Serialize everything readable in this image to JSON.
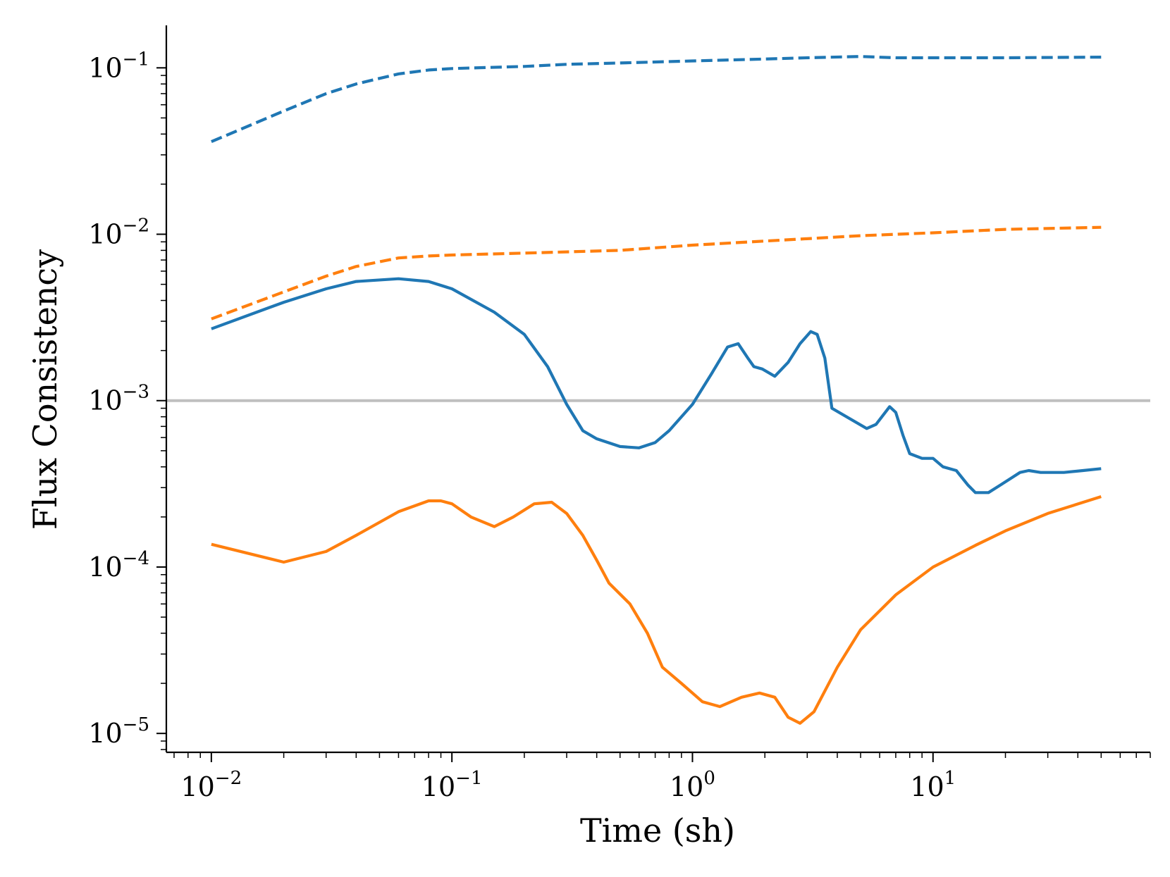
{
  "chart_data": {
    "type": "line",
    "title": "",
    "xlabel": "Time (sh)",
    "ylabel": "Flux Consistency",
    "xscale": "log",
    "yscale": "log",
    "xlim": [
      0.0065,
      80
    ],
    "ylim": [
      7.7e-06,
      0.18
    ],
    "x_ticks": [
      {
        "value": 0.01,
        "base": "10",
        "exp": "−2"
      },
      {
        "value": 0.1,
        "base": "10",
        "exp": "−1"
      },
      {
        "value": 1,
        "base": "10",
        "exp": "0"
      },
      {
        "value": 10,
        "base": "10",
        "exp": "1"
      }
    ],
    "y_ticks": [
      {
        "value": 1e-05,
        "base": "10",
        "exp": "−5"
      },
      {
        "value": 0.0001,
        "base": "10",
        "exp": "−4"
      },
      {
        "value": 0.001,
        "base": "10",
        "exp": "−3"
      },
      {
        "value": 0.01,
        "base": "10",
        "exp": "−2"
      },
      {
        "value": 0.1,
        "base": "10",
        "exp": "−1"
      }
    ],
    "grid": false,
    "reference_line": {
      "y": 0.001,
      "color": "#bfbfbf"
    },
    "series": [
      {
        "color": "#1f77b4",
        "dash": "dashed",
        "points": [
          [
            0.01,
            0.036
          ],
          [
            0.02,
            0.055
          ],
          [
            0.03,
            0.07
          ],
          [
            0.04,
            0.08
          ],
          [
            0.06,
            0.092
          ],
          [
            0.08,
            0.097
          ],
          [
            0.1,
            0.099
          ],
          [
            0.2,
            0.102
          ],
          [
            0.3,
            0.105
          ],
          [
            0.5,
            0.107
          ],
          [
            1,
            0.11
          ],
          [
            2,
            0.113
          ],
          [
            3,
            0.115
          ],
          [
            5,
            0.117
          ],
          [
            7,
            0.115
          ],
          [
            10,
            0.115
          ],
          [
            20,
            0.115
          ],
          [
            50,
            0.116
          ]
        ]
      },
      {
        "color": "#ff7f0e",
        "dash": "dashed",
        "points": [
          [
            0.01,
            0.0031
          ],
          [
            0.02,
            0.0045
          ],
          [
            0.03,
            0.0056
          ],
          [
            0.04,
            0.0064
          ],
          [
            0.06,
            0.0072
          ],
          [
            0.08,
            0.0074
          ],
          [
            0.1,
            0.0075
          ],
          [
            0.2,
            0.0077
          ],
          [
            0.5,
            0.008
          ],
          [
            1,
            0.0086
          ],
          [
            2,
            0.0091
          ],
          [
            5,
            0.0098
          ],
          [
            10,
            0.0102
          ],
          [
            20,
            0.0107
          ],
          [
            50,
            0.011
          ]
        ]
      },
      {
        "color": "#1f77b4",
        "dash": "solid",
        "points": [
          [
            0.01,
            0.0027
          ],
          [
            0.02,
            0.0039
          ],
          [
            0.03,
            0.0047
          ],
          [
            0.04,
            0.0052
          ],
          [
            0.06,
            0.0054
          ],
          [
            0.08,
            0.0052
          ],
          [
            0.1,
            0.0047
          ],
          [
            0.15,
            0.0034
          ],
          [
            0.2,
            0.0025
          ],
          [
            0.25,
            0.0016
          ],
          [
            0.3,
            0.00095
          ],
          [
            0.35,
            0.00066
          ],
          [
            0.4,
            0.00059
          ],
          [
            0.5,
            0.00053
          ],
          [
            0.6,
            0.00052
          ],
          [
            0.7,
            0.00056
          ],
          [
            0.8,
            0.00066
          ],
          [
            1.0,
            0.00095
          ],
          [
            1.2,
            0.00145
          ],
          [
            1.4,
            0.0021
          ],
          [
            1.55,
            0.0022
          ],
          [
            1.7,
            0.0018
          ],
          [
            1.8,
            0.0016
          ],
          [
            1.95,
            0.00155
          ],
          [
            2.2,
            0.0014
          ],
          [
            2.5,
            0.0017
          ],
          [
            2.8,
            0.0022
          ],
          [
            3.1,
            0.0026
          ],
          [
            3.3,
            0.0025
          ],
          [
            3.55,
            0.0018
          ],
          [
            3.8,
            0.0009
          ],
          [
            4.5,
            0.00078
          ],
          [
            5.3,
            0.00068
          ],
          [
            5.8,
            0.00072
          ],
          [
            6.6,
            0.00092
          ],
          [
            7.0,
            0.00085
          ],
          [
            7.5,
            0.00062
          ],
          [
            8.0,
            0.00048
          ],
          [
            9.0,
            0.00045
          ],
          [
            10,
            0.00045
          ],
          [
            11,
            0.0004
          ],
          [
            12.5,
            0.00038
          ],
          [
            14,
            0.00031
          ],
          [
            15,
            0.00028
          ],
          [
            17,
            0.00028
          ],
          [
            19,
            0.00031
          ],
          [
            21,
            0.00034
          ],
          [
            23,
            0.00037
          ],
          [
            25,
            0.00038
          ],
          [
            28,
            0.00037
          ],
          [
            35,
            0.00037
          ],
          [
            42,
            0.00038
          ],
          [
            50,
            0.00039
          ]
        ]
      },
      {
        "color": "#ff7f0e",
        "dash": "solid",
        "points": [
          [
            0.01,
            0.000137
          ],
          [
            0.02,
            0.000107
          ],
          [
            0.03,
            0.000124
          ],
          [
            0.04,
            0.000155
          ],
          [
            0.06,
            0.000215
          ],
          [
            0.08,
            0.00025
          ],
          [
            0.09,
            0.00025
          ],
          [
            0.1,
            0.00024
          ],
          [
            0.12,
            0.0002
          ],
          [
            0.15,
            0.000175
          ],
          [
            0.18,
            0.0002
          ],
          [
            0.22,
            0.00024
          ],
          [
            0.26,
            0.000245
          ],
          [
            0.3,
            0.00021
          ],
          [
            0.35,
            0.000155
          ],
          [
            0.4,
            0.00011
          ],
          [
            0.45,
            8e-05
          ],
          [
            0.55,
            6e-05
          ],
          [
            0.65,
            4e-05
          ],
          [
            0.75,
            2.5e-05
          ],
          [
            0.9,
            2e-05
          ],
          [
            1.1,
            1.55e-05
          ],
          [
            1.3,
            1.45e-05
          ],
          [
            1.6,
            1.65e-05
          ],
          [
            1.9,
            1.75e-05
          ],
          [
            2.2,
            1.65e-05
          ],
          [
            2.5,
            1.25e-05
          ],
          [
            2.8,
            1.15e-05
          ],
          [
            3.2,
            1.35e-05
          ],
          [
            4.0,
            2.5e-05
          ],
          [
            5,
            4.2e-05
          ],
          [
            7,
            6.8e-05
          ],
          [
            10,
            0.0001
          ],
          [
            15,
            0.000135
          ],
          [
            20,
            0.000165
          ],
          [
            30,
            0.00021
          ],
          [
            50,
            0.000265
          ]
        ]
      }
    ]
  }
}
